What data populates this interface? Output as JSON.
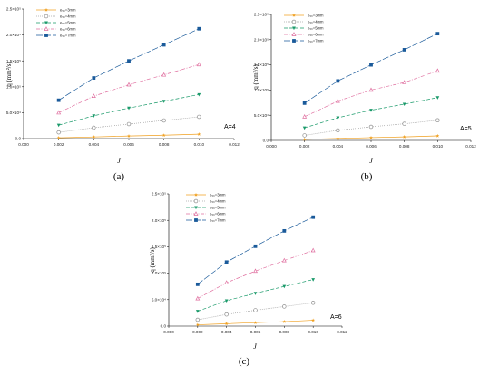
{
  "figure": {
    "panels": [
      {
        "label": "(a)",
        "annotation": "A=4",
        "chart_data": {
          "type": "line",
          "xlabel": "J",
          "ylabel": "q (mm²/s)",
          "xlim": [
            0.0,
            0.012
          ],
          "ylim": [
            0,
            250000
          ],
          "x_ticks": [
            "0.000",
            "0.002",
            "0.004",
            "0.006",
            "0.008",
            "0.010",
            "0.012"
          ],
          "y_ticks": [
            "0.0",
            "5.0×10⁴",
            "1.0×10⁵",
            "1.5×10⁵",
            "2.0×10⁵",
            "2.5×10⁵"
          ],
          "legend_position": "top-left",
          "series": [
            {
              "name": "e₅₀=3mm",
              "color": "#f0a020",
              "marker": "star",
              "dash": "solid",
              "x": [
                0.002,
                0.004,
                0.006,
                0.008,
                0.01
              ],
              "y": [
                1500,
                3200,
                5000,
                6500,
                8500
              ]
            },
            {
              "name": "e₅₀=4mm",
              "color": "#909090",
              "marker": "circle-open",
              "dash": "dot",
              "x": [
                0.002,
                0.004,
                0.006,
                0.008,
                0.01
              ],
              "y": [
                12000,
                21000,
                28000,
                35000,
                42000
              ]
            },
            {
              "name": "e₅₀=5mm",
              "color": "#1a9a6a",
              "marker": "triangle-down",
              "dash": "dash",
              "x": [
                0.002,
                0.004,
                0.006,
                0.008,
                0.01
              ],
              "y": [
                26000,
                44000,
                59000,
                72000,
                85000
              ]
            },
            {
              "name": "e₅₀=6mm",
              "color": "#e070a0",
              "marker": "triangle-open",
              "dash": "dashdot",
              "x": [
                0.002,
                0.004,
                0.006,
                0.008,
                0.01
              ],
              "y": [
                50000,
                82000,
                104000,
                123000,
                143000
              ]
            },
            {
              "name": "e₅₀=7mm",
              "color": "#1a5a9a",
              "marker": "square",
              "dash": "longdash",
              "x": [
                0.002,
                0.004,
                0.006,
                0.008,
                0.01
              ],
              "y": [
                74000,
                117000,
                150000,
                181000,
                212000
              ]
            }
          ]
        }
      },
      {
        "label": "(b)",
        "annotation": "A=5",
        "chart_data": {
          "type": "line",
          "xlabel": "J",
          "ylabel": "q (mm²/s)",
          "xlim": [
            0.0,
            0.012
          ],
          "ylim": [
            0,
            250000
          ],
          "x_ticks": [
            "0.000",
            "0.002",
            "0.004",
            "0.006",
            "0.008",
            "0.010",
            "0.012"
          ],
          "y_ticks": [
            "0.0",
            "5.0×10⁴",
            "1.0×10⁵",
            "1.5×10⁵",
            "2.0×10⁵",
            "2.5×10⁵"
          ],
          "legend_position": "top-left",
          "series": [
            {
              "name": "e₅₀=3mm",
              "color": "#f0a020",
              "marker": "star",
              "dash": "solid",
              "x": [
                0.002,
                0.004,
                0.006,
                0.008,
                0.01
              ],
              "y": [
                2000,
                3800,
                5500,
                7000,
                9000
              ]
            },
            {
              "name": "e₅₀=4mm",
              "color": "#909090",
              "marker": "circle-open",
              "dash": "dot",
              "x": [
                0.002,
                0.004,
                0.006,
                0.008,
                0.01
              ],
              "y": [
                10000,
                20000,
                27000,
                33000,
                40000
              ]
            },
            {
              "name": "e₅₀=5mm",
              "color": "#1a9a6a",
              "marker": "triangle-down",
              "dash": "dash",
              "x": [
                0.002,
                0.004,
                0.006,
                0.008,
                0.01
              ],
              "y": [
                25000,
                45000,
                60000,
                72000,
                85000
              ]
            },
            {
              "name": "e₅₀=6mm",
              "color": "#e070a0",
              "marker": "triangle-open",
              "dash": "dashdot",
              "x": [
                0.002,
                0.004,
                0.006,
                0.008,
                0.01
              ],
              "y": [
                47000,
                78000,
                100000,
                115000,
                138000
              ]
            },
            {
              "name": "e₅₀=7mm",
              "color": "#1a5a9a",
              "marker": "square",
              "dash": "longdash",
              "x": [
                0.002,
                0.004,
                0.006,
                0.008,
                0.01
              ],
              "y": [
                74000,
                118000,
                150000,
                180000,
                212000
              ]
            }
          ]
        }
      },
      {
        "label": "(c)",
        "annotation": "A=6",
        "chart_data": {
          "type": "line",
          "xlabel": "J",
          "ylabel": "q (mm²/s)",
          "xlim": [
            0.0,
            0.012
          ],
          "ylim": [
            0,
            250000
          ],
          "x_ticks": [
            "0.000",
            "0.002",
            "0.004",
            "0.006",
            "0.008",
            "0.010",
            "0.012"
          ],
          "y_ticks": [
            "0.0",
            "5.0×10⁴",
            "1.0×10⁵",
            "1.5×10⁵",
            "2.0×10⁵",
            "2.5×10⁵"
          ],
          "legend_position": "top-left",
          "series": [
            {
              "name": "e₅₀=3mm",
              "color": "#f0a020",
              "marker": "star",
              "dash": "solid",
              "x": [
                0.002,
                0.004,
                0.006,
                0.008,
                0.01
              ],
              "y": [
                2500,
                4500,
                6500,
                8500,
                11000
              ]
            },
            {
              "name": "e₅₀=4mm",
              "color": "#909090",
              "marker": "circle-open",
              "dash": "dot",
              "x": [
                0.002,
                0.004,
                0.006,
                0.008,
                0.01
              ],
              "y": [
                12000,
                22000,
                30000,
                37000,
                44000
              ]
            },
            {
              "name": "e₅₀=5mm",
              "color": "#1a9a6a",
              "marker": "triangle-down",
              "dash": "dash",
              "x": [
                0.002,
                0.004,
                0.006,
                0.008,
                0.01
              ],
              "y": [
                28000,
                48000,
                62000,
                75000,
                88000
              ]
            },
            {
              "name": "e₅₀=6mm",
              "color": "#e070a0",
              "marker": "triangle-open",
              "dash": "dashdot",
              "x": [
                0.002,
                0.004,
                0.006,
                0.008,
                0.01
              ],
              "y": [
                52000,
                82000,
                104000,
                124000,
                143000
              ]
            },
            {
              "name": "e₅₀=7mm",
              "color": "#1a5a9a",
              "marker": "square",
              "dash": "longdash",
              "x": [
                0.002,
                0.004,
                0.006,
                0.008,
                0.01
              ],
              "y": [
                79000,
                121000,
                151000,
                180000,
                206000
              ]
            }
          ]
        }
      }
    ]
  }
}
